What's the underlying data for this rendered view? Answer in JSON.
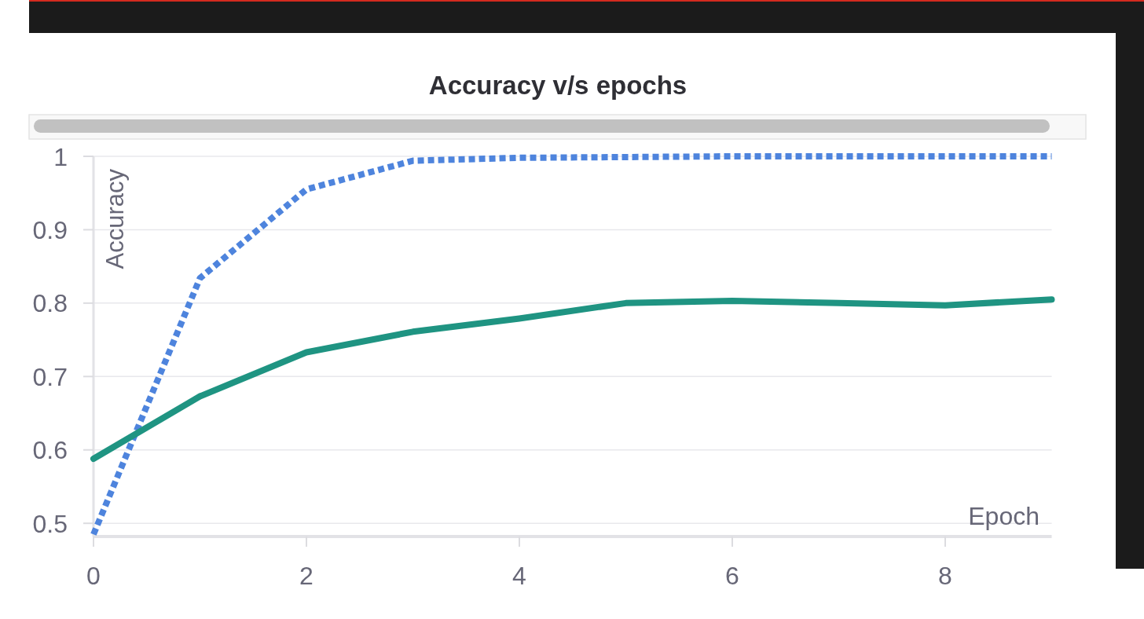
{
  "chart_data": {
    "type": "line",
    "title": "Accuracy v/s epochs",
    "xlabel": "Epoch",
    "ylabel": "Accuracy",
    "x": [
      0,
      1,
      2,
      3,
      4,
      5,
      6,
      7,
      8,
      9
    ],
    "series": [
      {
        "color": "#4e84dd",
        "line_style": "dotted",
        "values": [
          0.485,
          0.834,
          0.955,
          0.994,
          0.998,
          0.999,
          1.0,
          1.0,
          1.0,
          1.0
        ]
      },
      {
        "color": "#1f9482",
        "line_style": "solid",
        "values": [
          0.588,
          0.673,
          0.733,
          0.761,
          0.779,
          0.8,
          0.803,
          0.8,
          0.797,
          0.805
        ]
      }
    ],
    "xlim": [
      0,
      9
    ],
    "ylim": [
      0.482,
      1
    ],
    "xticks": [
      0,
      2,
      4,
      6,
      8
    ],
    "yticks": [
      0.5,
      0.6,
      0.7,
      0.8,
      0.9,
      1
    ],
    "grid": "y"
  }
}
